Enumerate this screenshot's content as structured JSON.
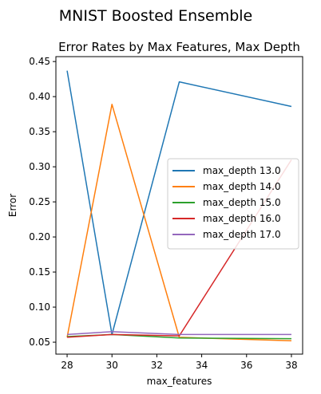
{
  "chart_data": {
    "type": "line",
    "suptitle": "MNIST Boosted Ensemble",
    "title": "Error Rates by Max Features, Max Depth",
    "xlabel": "max_features",
    "ylabel": "Error",
    "x": [
      28,
      30,
      33,
      38
    ],
    "xlim": [
      27.5,
      38.5
    ],
    "ylim": [
      0.033,
      0.457
    ],
    "xticks": [
      28,
      30,
      32,
      34,
      36,
      38
    ],
    "xtick_labels": [
      "28",
      "30",
      "32",
      "34",
      "36",
      "38"
    ],
    "yticks": [
      0.05,
      0.1,
      0.15,
      0.2,
      0.25,
      0.3,
      0.35,
      0.4,
      0.45
    ],
    "ytick_labels": [
      "0.05",
      "0.10",
      "0.15",
      "0.20",
      "0.25",
      "0.30",
      "0.35",
      "0.40",
      "0.45"
    ],
    "grid": false,
    "legend_position": "center-right",
    "series": [
      {
        "name": "max_depth 13.0",
        "color": "#1f77b4",
        "values": [
          0.437,
          0.061,
          0.421,
          0.386
        ]
      },
      {
        "name": "max_depth 14.0",
        "color": "#ff7f0e",
        "values": [
          0.057,
          0.389,
          0.057,
          0.052
        ]
      },
      {
        "name": "max_depth 15.0",
        "color": "#2ca02c",
        "values": [
          0.058,
          0.061,
          0.056,
          0.055
        ]
      },
      {
        "name": "max_depth 16.0",
        "color": "#d62728",
        "values": [
          0.057,
          0.061,
          0.059,
          0.31
        ]
      },
      {
        "name": "max_depth 17.0",
        "color": "#9467bd",
        "values": [
          0.061,
          0.065,
          0.061,
          0.061
        ]
      }
    ]
  }
}
